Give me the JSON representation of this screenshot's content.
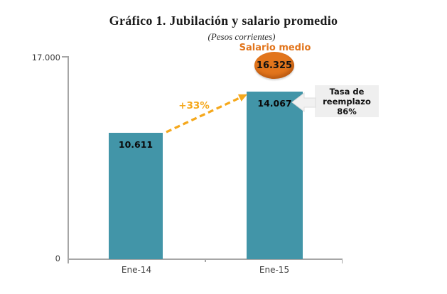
{
  "title": "Gráfico 1. Jubilación y salario promedio",
  "subtitle": "(Pesos corrientes)",
  "chart_data": {
    "type": "bar",
    "categories": [
      "Ene-14",
      "Ene-15"
    ],
    "values": [
      10611,
      14067
    ],
    "point_labels": [
      "10.611",
      "14.067"
    ],
    "ylim": [
      0,
      17000
    ],
    "yticks": [
      {
        "value": 0,
        "label": "0"
      },
      {
        "value": 17000,
        "label": "17.000"
      }
    ],
    "grid": false,
    "legend": "none",
    "annotations": {
      "salario_medio": {
        "label": "Salario medio",
        "value": 16325,
        "value_label": "16.325"
      },
      "growth_label": "+33%",
      "callout_lines": [
        "Tasa de",
        "reemplazo",
        "86%"
      ]
    },
    "colors": {
      "bar": "#4295a8",
      "salario_circle": "#e2751c",
      "salario_label": "#e2751c",
      "arrow": "#f5a81c",
      "callout_bg": "#efefef",
      "axis": "#a6a6a6"
    }
  }
}
